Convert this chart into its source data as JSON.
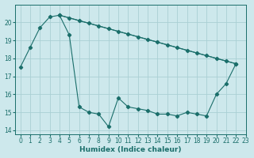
{
  "xlabel": "Humidex (Indice chaleur)",
  "bg_color": "#cde8ec",
  "line_color": "#1a6e6a",
  "grid_color": "#aacfd4",
  "xlim": [
    -0.5,
    23
  ],
  "ylim": [
    13.8,
    21.0
  ],
  "yticks": [
    14,
    15,
    16,
    17,
    18,
    19,
    20
  ],
  "xticks": [
    0,
    1,
    2,
    3,
    4,
    5,
    6,
    7,
    8,
    9,
    10,
    11,
    12,
    13,
    14,
    15,
    16,
    17,
    18,
    19,
    20,
    21,
    22,
    23
  ],
  "line1_x": [
    0,
    1,
    2,
    3,
    4,
    5,
    6,
    7,
    8,
    9,
    10,
    11,
    12,
    13,
    14,
    15,
    16,
    17,
    18,
    19,
    20,
    21,
    22
  ],
  "line1_y": [
    17.5,
    18.6,
    19.7,
    20.3,
    20.4,
    19.3,
    15.3,
    15.0,
    14.9,
    14.2,
    15.8,
    15.3,
    15.2,
    15.1,
    14.9,
    14.9,
    14.8,
    15.0,
    14.9,
    14.8,
    16.0,
    16.6,
    17.7
  ],
  "line2_x": [
    4,
    5,
    6,
    7,
    8,
    9,
    10,
    11,
    12,
    13,
    14,
    15,
    16,
    17,
    18,
    19,
    20,
    21,
    22
  ],
  "line2_y": [
    20.4,
    20.25,
    20.1,
    19.95,
    19.8,
    19.65,
    19.5,
    19.35,
    19.2,
    19.05,
    18.9,
    18.75,
    18.6,
    18.45,
    18.3,
    18.15,
    18.0,
    17.85,
    17.7
  ],
  "line3_x": [
    4,
    22
  ],
  "line3_y": [
    20.4,
    17.7
  ]
}
